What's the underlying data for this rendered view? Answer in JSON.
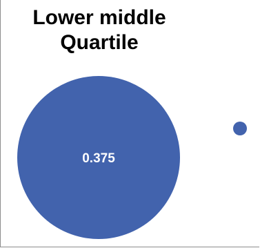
{
  "chart_data": {
    "type": "bubble",
    "title_lines": [
      "Lower middle",
      "Quartile"
    ],
    "points": [
      {
        "value": 0.375,
        "label": "0.375"
      },
      {
        "value": 0.0,
        "label": ""
      }
    ],
    "bubble_color": "#4263ad",
    "label_color": "#ffffff",
    "axis_color": "#8c8c8c"
  }
}
